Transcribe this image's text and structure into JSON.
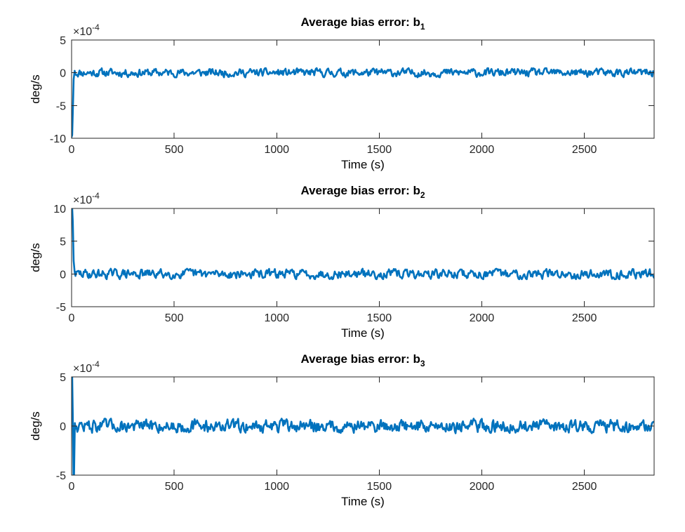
{
  "colors": {
    "series": "#0072BD",
    "axes": "#262626"
  },
  "chart_data": [
    {
      "type": "line",
      "title": "Average bias error: b",
      "title_subscript": "1",
      "xlabel": "Time (s)",
      "ylabel": "deg/s",
      "y_exponent_base": "×10",
      "y_exponent_power": "-4",
      "xlim": [
        0,
        2840
      ],
      "ylim": [
        -10,
        5
      ],
      "xticks": [
        0,
        500,
        1000,
        1500,
        2000,
        2500
      ],
      "xtick_labels": [
        "0",
        "500",
        "1000",
        "1500",
        "2000",
        "2500"
      ],
      "yticks": [
        5,
        0,
        -5,
        -10
      ],
      "ytick_labels": [
        "5",
        "0",
        "-5",
        "-10"
      ],
      "grid": false,
      "series": [
        {
          "color": "#0072BD",
          "transient": {
            "x": [
              0,
              3,
              6,
              10,
              15
            ],
            "y": [
              -9.8,
              -9.5,
              -6.0,
              -1.0,
              0.3
            ]
          },
          "noise": {
            "x_start": 15,
            "x_end": 2840,
            "step": 4,
            "mean": 0.0,
            "amplitude": 0.7,
            "seed": 11
          }
        }
      ]
    },
    {
      "type": "line",
      "title": "Average bias error: b",
      "title_subscript": "2",
      "xlabel": "Time (s)",
      "ylabel": "deg/s",
      "y_exponent_base": "×10",
      "y_exponent_power": "-4",
      "xlim": [
        0,
        2840
      ],
      "ylim": [
        -5,
        10
      ],
      "xticks": [
        0,
        500,
        1000,
        1500,
        2000,
        2500
      ],
      "xtick_labels": [
        "0",
        "500",
        "1000",
        "1500",
        "2000",
        "2500"
      ],
      "yticks": [
        10,
        5,
        0,
        -5
      ],
      "ytick_labels": [
        "10",
        "5",
        "0",
        "-5"
      ],
      "grid": false,
      "series": [
        {
          "color": "#0072BD",
          "transient": {
            "x": [
              0,
              3,
              6,
              10,
              15
            ],
            "y": [
              10,
              10,
              8,
              2,
              0.3
            ]
          },
          "noise": {
            "x_start": 15,
            "x_end": 2840,
            "step": 4,
            "mean": 0.0,
            "amplitude": 0.8,
            "seed": 29
          }
        }
      ]
    },
    {
      "type": "line",
      "title": "Average bias error: b",
      "title_subscript": "3",
      "xlabel": "Time (s)",
      "ylabel": "deg/s",
      "y_exponent_base": "×10",
      "y_exponent_power": "-4",
      "xlim": [
        0,
        2840
      ],
      "ylim": [
        -5,
        5
      ],
      "xticks": [
        0,
        500,
        1000,
        1500,
        2000,
        2500
      ],
      "xtick_labels": [
        "0",
        "500",
        "1000",
        "1500",
        "2000",
        "2500"
      ],
      "yticks": [
        5,
        0,
        -5
      ],
      "ytick_labels": [
        "5",
        "0",
        "-5"
      ],
      "grid": false,
      "series": [
        {
          "color": "#0072BD",
          "transient": {
            "x": [
              0,
              3,
              6,
              9,
              12,
              16
            ],
            "y": [
              5,
              5,
              1,
              -5,
              -5,
              0.3
            ]
          },
          "noise": {
            "x_start": 16,
            "x_end": 2840,
            "step": 4,
            "mean": 0.0,
            "amplitude": 0.75,
            "seed": 47
          }
        }
      ]
    }
  ]
}
